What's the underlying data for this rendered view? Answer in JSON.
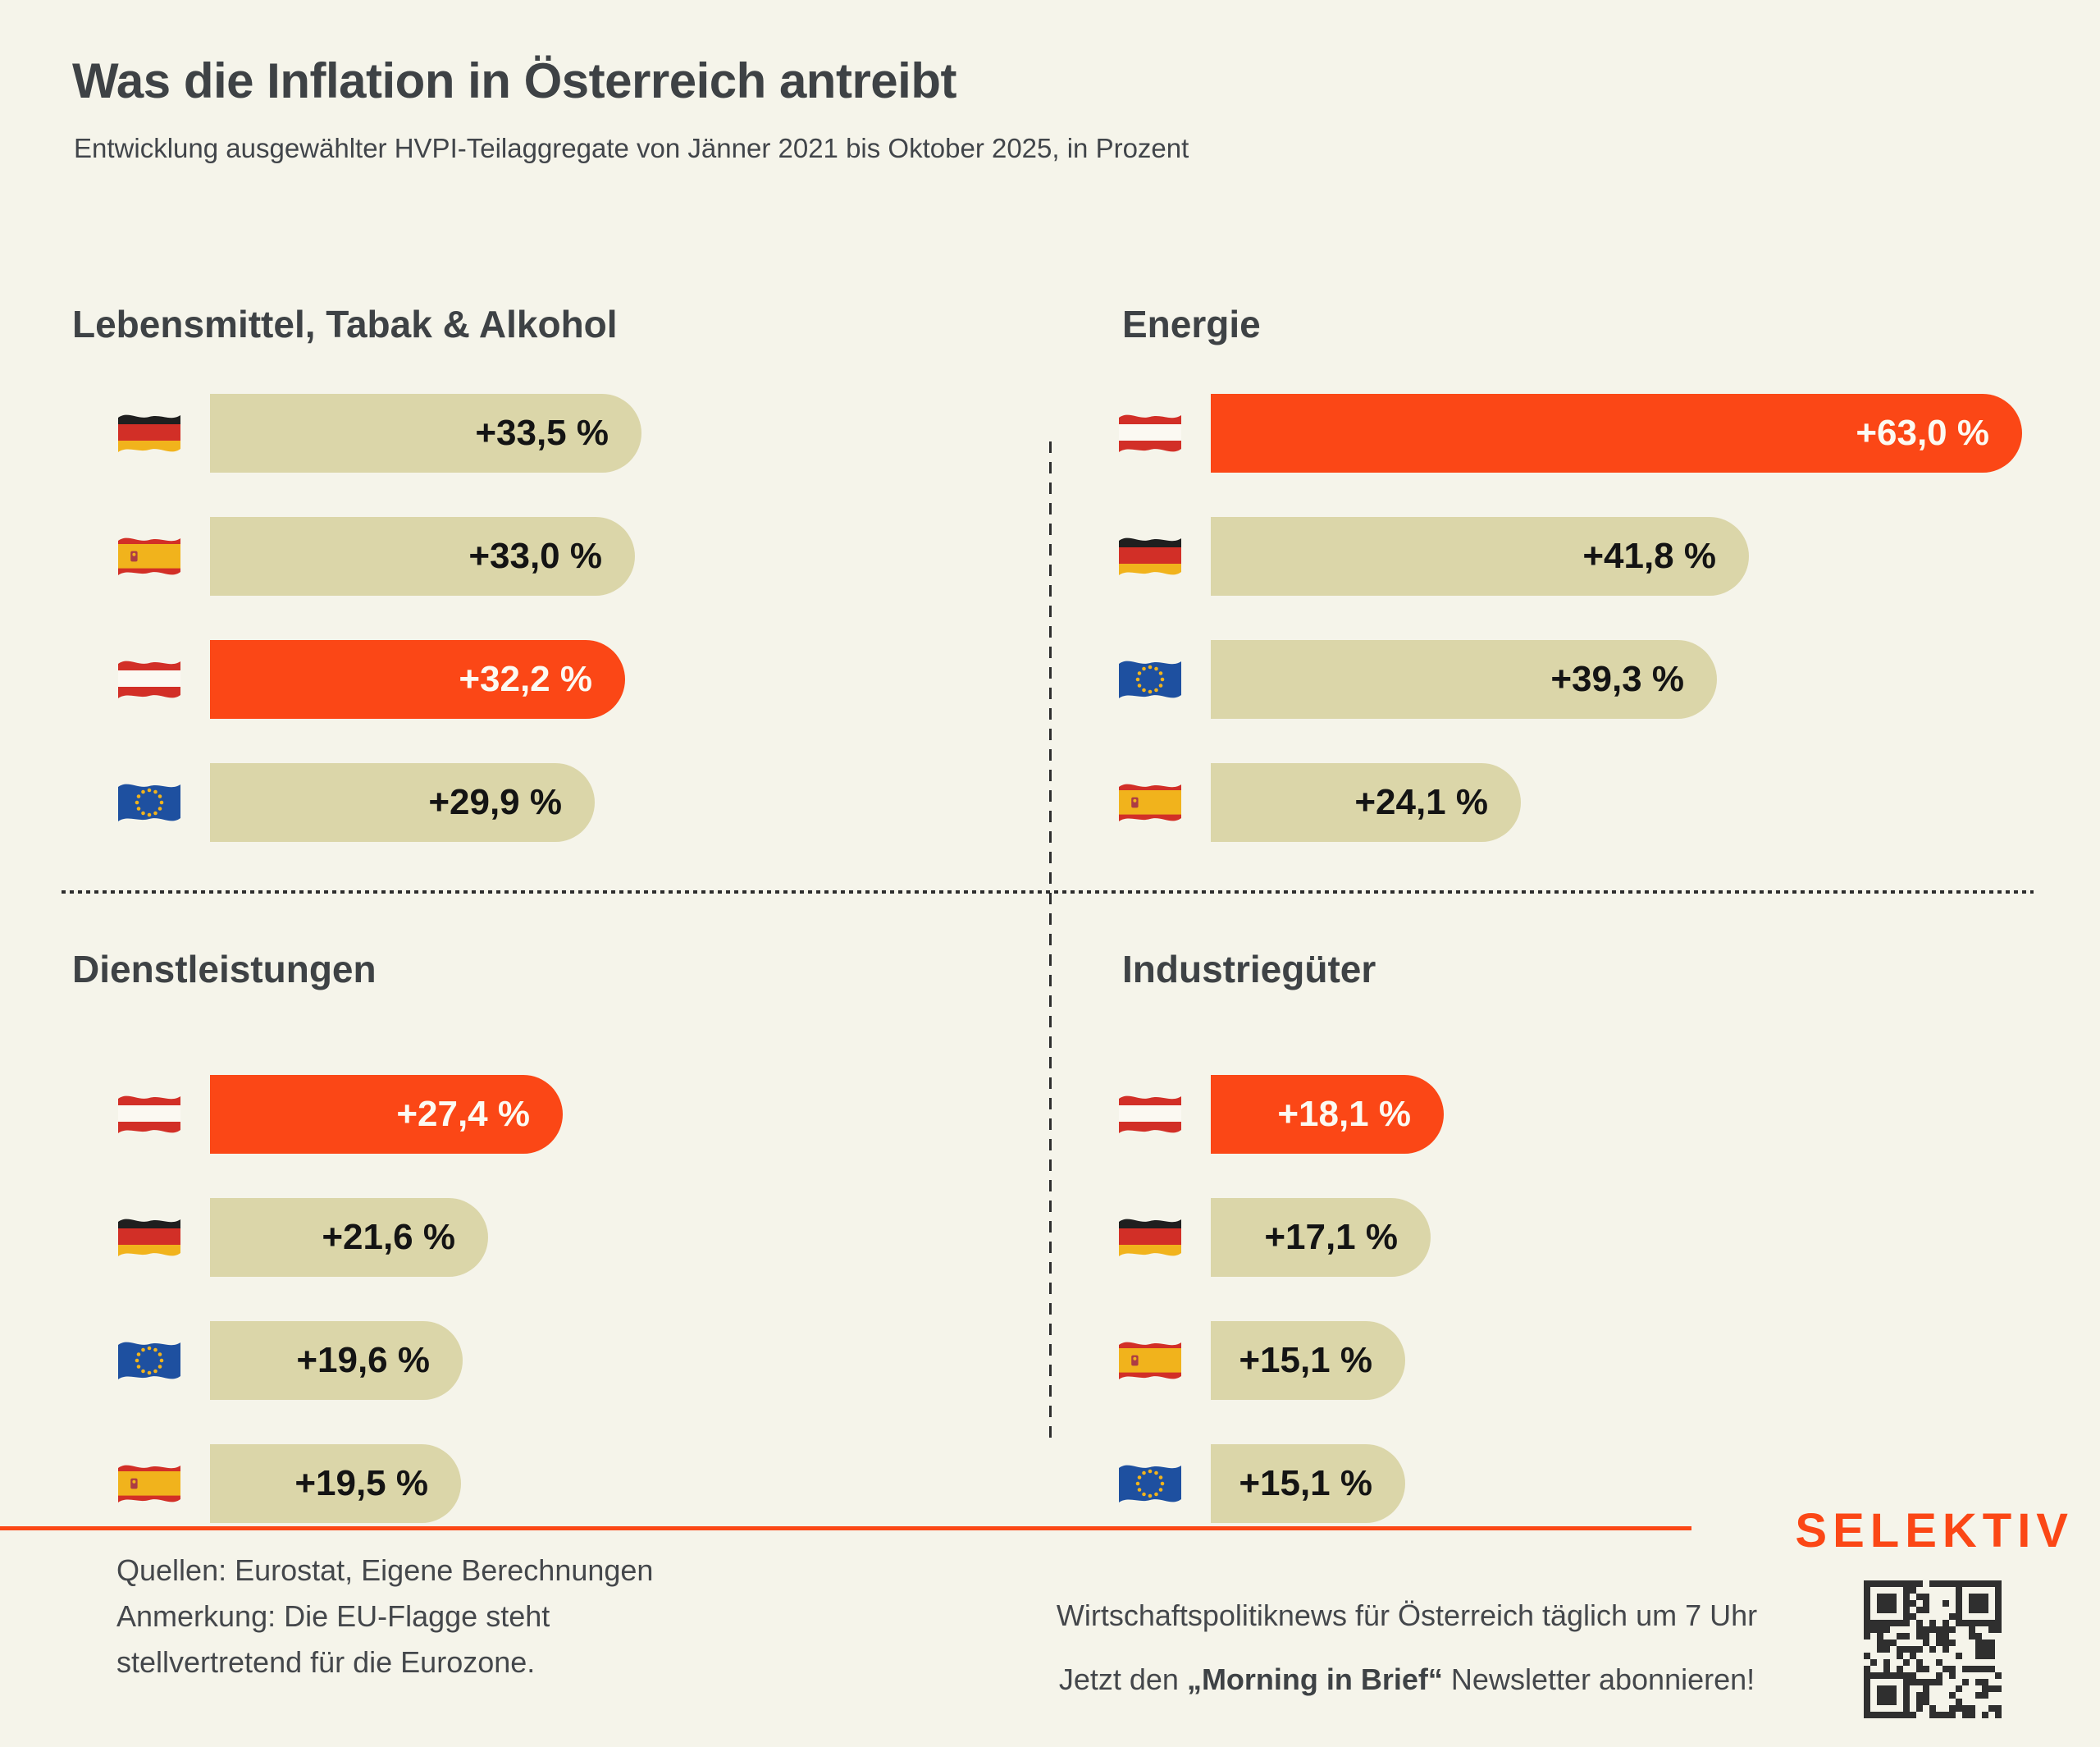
{
  "header": {
    "title": "Was die Inflation in Österreich antreibt",
    "subtitle": "Entwicklung ausgewählter HVPI-Teilaggregate von Jänner 2021 bis Oktober 2025, in Prozent"
  },
  "colors": {
    "background": "#F5F4EA",
    "accent": "#FB4716",
    "bar": "#DBD6A9",
    "heading_ink": "#3E4245",
    "value_ink": "#141414",
    "value_on_accent": "#FCFAF2"
  },
  "chart_data": [
    {
      "type": "bar",
      "title": "Lebensmittel, Tabak & Alkohol",
      "unit": "percent",
      "xlim": [
        0,
        63
      ],
      "bars": [
        {
          "flag": "germany",
          "value": 33.5,
          "label": "+33,5 %",
          "highlight": false
        },
        {
          "flag": "spain",
          "value": 33.0,
          "label": "+33,0 %",
          "highlight": false
        },
        {
          "flag": "austria",
          "value": 32.2,
          "label": "+32,2 %",
          "highlight": true
        },
        {
          "flag": "eu",
          "value": 29.9,
          "label": "+29,9 %",
          "highlight": false
        }
      ]
    },
    {
      "type": "bar",
      "title": "Energie",
      "unit": "percent",
      "xlim": [
        0,
        63
      ],
      "bars": [
        {
          "flag": "austria",
          "value": 63.0,
          "label": "+63,0 %",
          "highlight": true
        },
        {
          "flag": "germany",
          "value": 41.8,
          "label": "+41,8 %",
          "highlight": false
        },
        {
          "flag": "eu",
          "value": 39.3,
          "label": "+39,3 %",
          "highlight": false
        },
        {
          "flag": "spain",
          "value": 24.1,
          "label": "+24,1 %",
          "highlight": false
        }
      ]
    },
    {
      "type": "bar",
      "title": "Dienstleistungen",
      "unit": "percent",
      "xlim": [
        0,
        63
      ],
      "bars": [
        {
          "flag": "austria",
          "value": 27.4,
          "label": "+27,4 %",
          "highlight": true
        },
        {
          "flag": "germany",
          "value": 21.6,
          "label": "+21,6 %",
          "highlight": false
        },
        {
          "flag": "eu",
          "value": 19.6,
          "label": "+19,6 %",
          "highlight": false
        },
        {
          "flag": "spain",
          "value": 19.5,
          "label": "+19,5 %",
          "highlight": false
        }
      ]
    },
    {
      "type": "bar",
      "title": "Industriegüter",
      "unit": "percent",
      "xlim": [
        0,
        63
      ],
      "bars": [
        {
          "flag": "austria",
          "value": 18.1,
          "label": "+18,1 %",
          "highlight": true
        },
        {
          "flag": "germany",
          "value": 17.1,
          "label": "+17,1 %",
          "highlight": false
        },
        {
          "flag": "spain",
          "value": 15.1,
          "label": "+15,1 %",
          "highlight": false
        },
        {
          "flag": "eu",
          "value": 15.1,
          "label": "+15,1 %",
          "highlight": false
        }
      ]
    }
  ],
  "footer": {
    "sources": [
      "Quellen: Eurostat, Eigene Berechnungen",
      "Anmerkung: Die EU-Flagge steht",
      "stellvertretend für die Eurozone."
    ],
    "newsletter_line1": "Wirtschaftspolitiknews für Österreich täglich um 7 Uhr",
    "newsletter_line2_prefix": "Jetzt den ",
    "newsletter_line2_bold": "„Morning in Brief“",
    "newsletter_line2_suffix": " Newsletter abonnieren!",
    "brand": "SELEKTIV"
  }
}
